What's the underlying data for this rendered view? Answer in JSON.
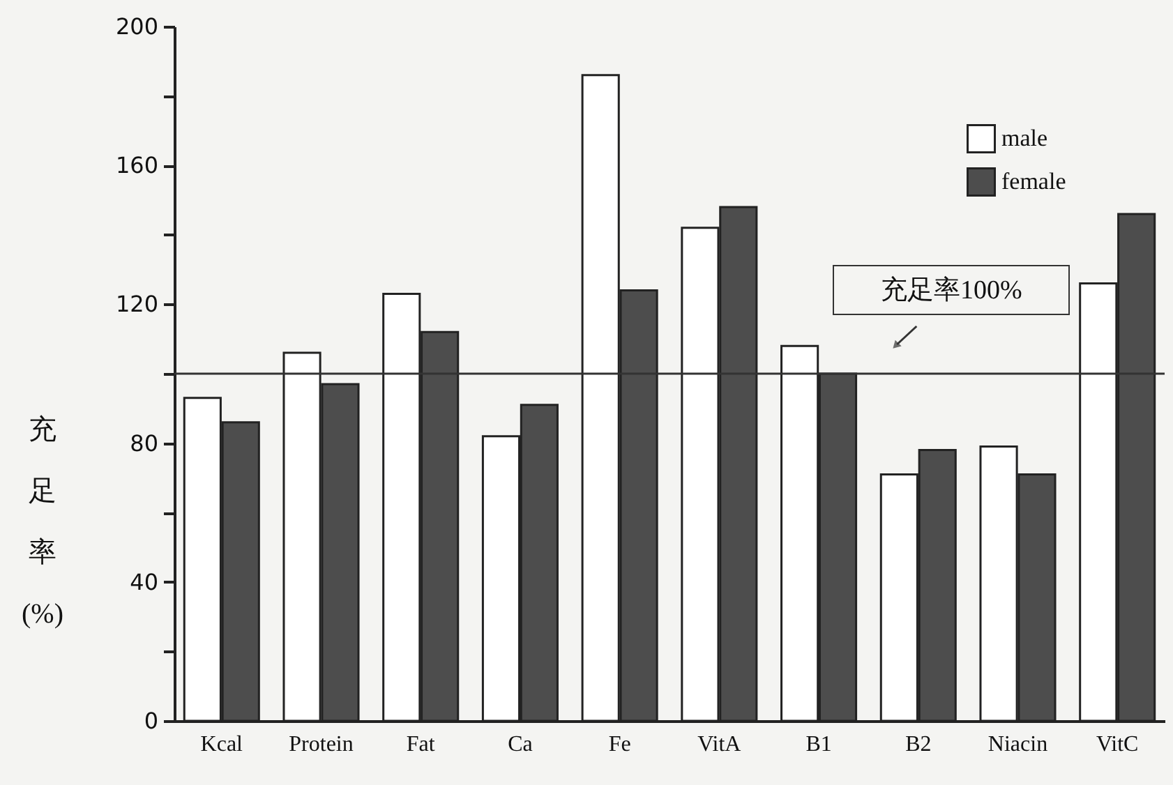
{
  "chart_data": {
    "type": "bar",
    "ylabel": "充足率(%)",
    "categories": [
      "Kcal",
      "Protein",
      "Fat",
      "Ca",
      "Fe",
      "VitA",
      "B1",
      "B2",
      "Niacin",
      "VitC"
    ],
    "series": [
      {
        "name": "male",
        "color": "#ffffff",
        "values": [
          93,
          106,
          123,
          82,
          186,
          142,
          108,
          71,
          79,
          126
        ]
      },
      {
        "name": "female",
        "color": "#4d4d4d",
        "values": [
          86,
          97,
          112,
          91,
          124,
          148,
          100,
          78,
          71,
          146
        ]
      }
    ],
    "ylim": [
      0,
      200
    ],
    "yticks": [
      0,
      {
        "value": 20,
        "label": null
      },
      40,
      {
        "value": 60,
        "label": null
      },
      80,
      {
        "value": 100,
        "label": null
      },
      120,
      {
        "value": 140,
        "label": null
      },
      160,
      {
        "value": 180,
        "label": null
      },
      200
    ],
    "ref_lines": [
      {
        "axis": "y",
        "value": 100,
        "label": "充足率100%"
      }
    ],
    "grid": false,
    "legend": "top right"
  }
}
